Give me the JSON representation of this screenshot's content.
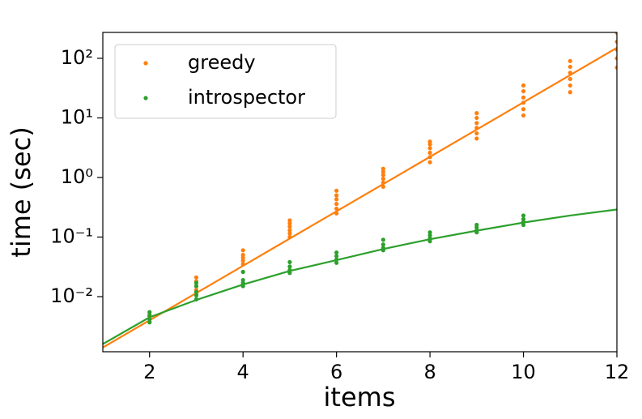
{
  "chart_data": {
    "type": "scatter",
    "xlabel": "items",
    "ylabel": "time (sec)",
    "xlim": [
      1,
      12
    ],
    "xticks": [
      2,
      4,
      6,
      8,
      10,
      12
    ],
    "ylim": [
      0.00119,
      272
    ],
    "log_y": true,
    "yticks": [
      {
        "value": 0.01,
        "label": "10⁻²"
      },
      {
        "value": 0.1,
        "label": "10⁻¹"
      },
      {
        "value": 1,
        "label": "10⁰"
      },
      {
        "value": 10,
        "label": "10¹"
      },
      {
        "value": 100,
        "label": "10²"
      }
    ],
    "legend": "upper left",
    "series": [
      {
        "name": "greedy",
        "color": "#ff7f0e",
        "x": [
          2,
          2,
          2,
          2,
          3,
          3,
          3,
          3,
          3,
          4,
          4,
          4,
          4,
          4,
          5,
          5,
          5,
          5,
          5,
          5,
          6,
          6,
          6,
          6,
          6,
          6,
          7,
          7,
          7,
          7,
          7,
          7,
          8,
          8,
          8,
          8,
          8,
          8,
          9,
          9,
          9,
          9,
          9,
          9,
          10,
          10,
          10,
          10,
          10,
          10,
          11,
          11,
          11,
          11,
          11,
          11,
          12,
          12,
          12,
          12,
          12
        ],
        "values": [
          0.0038,
          0.0042,
          0.0046,
          0.005,
          0.011,
          0.013,
          0.015,
          0.018,
          0.021,
          0.035,
          0.04,
          0.045,
          0.05,
          0.06,
          0.1,
          0.115,
          0.13,
          0.15,
          0.17,
          0.19,
          0.25,
          0.3,
          0.36,
          0.43,
          0.5,
          0.6,
          0.7,
          0.82,
          0.95,
          1.1,
          1.25,
          1.4,
          1.8,
          2.2,
          2.6,
          3.1,
          3.6,
          4,
          4.5,
          5.5,
          6.8,
          8.2,
          10,
          12,
          11,
          14,
          18,
          22,
          28,
          35,
          27,
          35,
          45,
          57,
          72,
          90,
          70,
          100,
          140,
          190,
          270
        ]
      },
      {
        "name": "introspector",
        "color": "#2ca02c",
        "x": [
          2,
          2,
          2,
          2,
          3,
          3,
          3,
          3,
          3,
          4,
          4,
          4,
          4,
          5,
          5,
          5,
          5,
          6,
          6,
          6,
          6,
          7,
          7,
          7,
          7,
          8,
          8,
          8,
          8,
          9,
          9,
          9,
          9,
          10,
          10,
          10,
          10
        ],
        "values": [
          0.0037,
          0.0042,
          0.0048,
          0.0055,
          0.009,
          0.0105,
          0.012,
          0.015,
          0.017,
          0.015,
          0.017,
          0.019,
          0.026,
          0.025,
          0.028,
          0.032,
          0.038,
          0.037,
          0.042,
          0.048,
          0.055,
          0.06,
          0.066,
          0.075,
          0.09,
          0.085,
          0.095,
          0.107,
          0.12,
          0.12,
          0.13,
          0.145,
          0.16,
          0.16,
          0.18,
          0.2,
          0.23
        ]
      }
    ],
    "fits": [
      {
        "color": "#ff7f0e",
        "x": [
          1,
          12
        ],
        "values": [
          0.0014,
          150
        ]
      },
      {
        "color": "#2ca02c",
        "x": [
          1,
          2,
          3,
          4,
          5,
          6,
          7,
          8,
          9,
          10,
          11,
          12
        ],
        "values": [
          0.0016,
          0.0045,
          0.0088,
          0.016,
          0.027,
          0.041,
          0.063,
          0.092,
          0.128,
          0.175,
          0.23,
          0.29
        ]
      }
    ]
  }
}
